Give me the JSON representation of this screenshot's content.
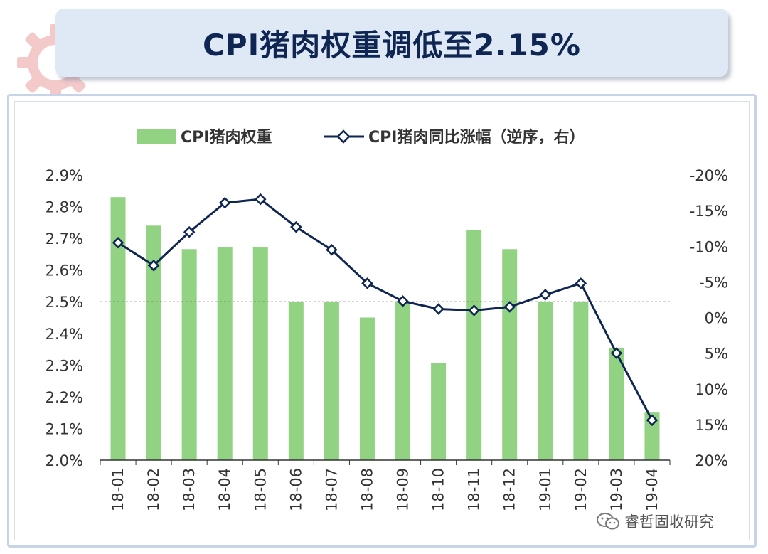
{
  "title": "CPI猪肉权重调低至2.15%",
  "watermark": "睿哲固收研究",
  "colors": {
    "bar": "#92d383",
    "line": "#0f2653",
    "banner": "#dfe9f6",
    "title": "#0f2653"
  },
  "chart_data": {
    "type": "bar+line",
    "categories": [
      "18-01",
      "18-02",
      "18-03",
      "18-04",
      "18-05",
      "18-06",
      "18-07",
      "18-08",
      "18-09",
      "18-10",
      "18-11",
      "18-12",
      "19-01",
      "19-02",
      "19-03",
      "19-04"
    ],
    "series": [
      {
        "name": "CPI猪肉权重",
        "type": "bar",
        "axis": "left",
        "values": [
          2.83,
          2.74,
          2.666,
          2.671,
          2.671,
          2.5,
          2.5,
          2.45,
          2.5,
          2.307,
          2.727,
          2.666,
          2.5,
          2.5,
          2.353,
          2.15
        ]
      },
      {
        "name": "CPI猪肉同比涨幅（逆序，右）",
        "type": "line",
        "axis": "right",
        "values": [
          -10.5,
          -7.3,
          -12.0,
          -16.1,
          -16.6,
          -12.7,
          -9.5,
          -4.8,
          -2.3,
          -1.2,
          -1.0,
          -1.5,
          -3.2,
          -4.8,
          5.0,
          14.4
        ]
      }
    ],
    "left_axis": {
      "ylim": [
        2.0,
        2.9
      ],
      "ticks": [
        "2.0%",
        "2.1%",
        "2.2%",
        "2.3%",
        "2.4%",
        "2.5%",
        "2.6%",
        "2.7%",
        "2.8%",
        "2.9%"
      ]
    },
    "right_axis": {
      "inverted": true,
      "ylim": [
        -20,
        20
      ],
      "ticks": [
        "-20%",
        "-15%",
        "-10%",
        "-5%",
        "0%",
        "5%",
        "10%",
        "15%",
        "20%"
      ]
    },
    "reference_line": {
      "value": 2.5,
      "axis": "left",
      "style": "dashed"
    },
    "legend_position": "top-center",
    "grid": false
  }
}
